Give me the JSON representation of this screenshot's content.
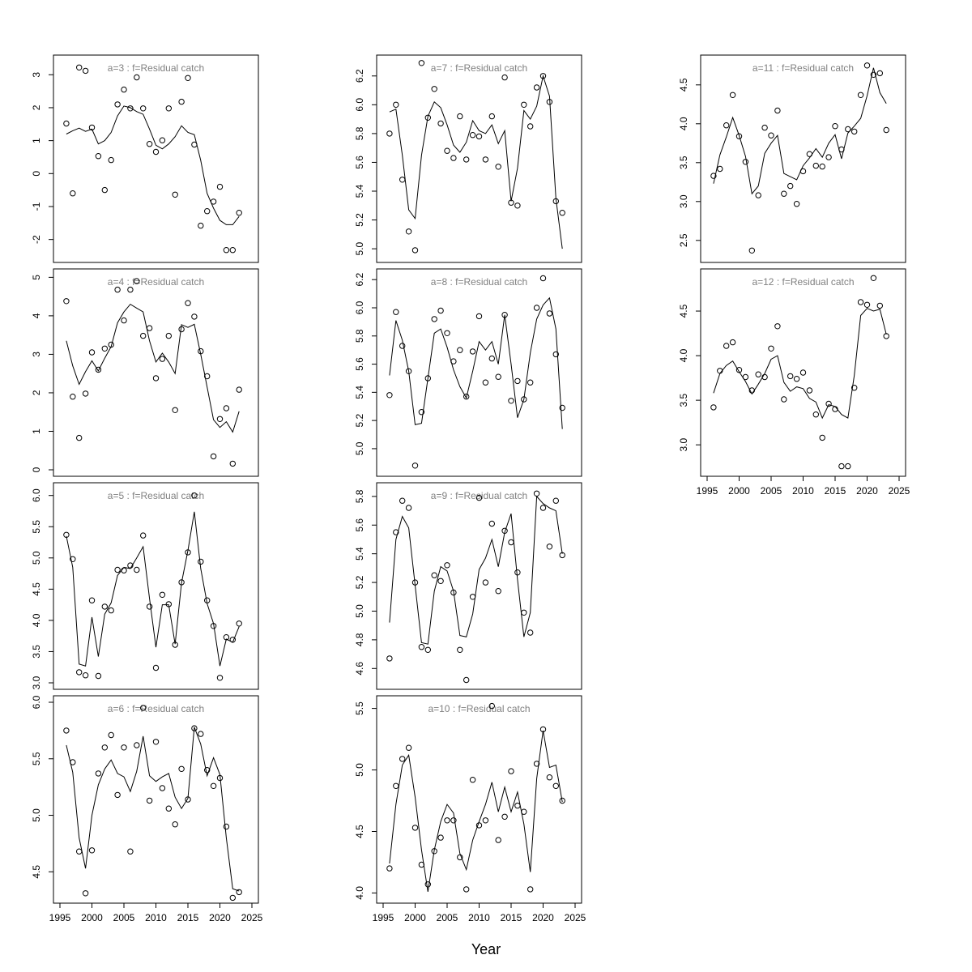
{
  "xlabel": "Year",
  "years": [
    1996,
    1997,
    1998,
    1999,
    2000,
    2001,
    2002,
    2003,
    2004,
    2005,
    2006,
    2007,
    2008,
    2009,
    2010,
    2011,
    2012,
    2013,
    2014,
    2015,
    2016,
    2017,
    2018,
    2019,
    2020,
    2021,
    2022,
    2023
  ],
  "chart_data": [
    {
      "type": "scatter",
      "title": "a=3  :  f=Residual catch",
      "xlim": [
        1995,
        2025
      ],
      "ylim": [
        -2.5,
        3.4
      ],
      "yticks": [
        -2,
        -1,
        0,
        1,
        2,
        3
      ],
      "xticks": [],
      "observed": [
        1.52,
        -0.6,
        3.22,
        3.12,
        1.4,
        0.53,
        -0.5,
        0.41,
        2.1,
        2.55,
        1.98,
        2.92,
        1.98,
        0.9,
        0.66,
        1.01,
        1.98,
        -0.64,
        2.18,
        2.9,
        0.88,
        -1.58,
        -1.14,
        -0.85,
        -0.4,
        -2.32,
        -2.32,
        -1.19
      ],
      "fitted": [
        1.2,
        1.3,
        1.38,
        1.28,
        1.35,
        0.9,
        1.0,
        1.25,
        1.75,
        2.05,
        2.0,
        1.88,
        1.8,
        1.35,
        0.86,
        0.75,
        0.9,
        1.12,
        1.45,
        1.25,
        1.18,
        0.4,
        -0.6,
        -1.05,
        -1.42,
        -1.55,
        -1.55,
        -1.3
      ]
    },
    {
      "type": "scatter",
      "title": "a=4  :  f=Residual catch",
      "xlim": [
        1995,
        2025
      ],
      "ylim": [
        0,
        5.05
      ],
      "yticks": [
        0,
        1,
        2,
        3,
        4,
        5
      ],
      "xticks": [],
      "observed": [
        4.38,
        1.9,
        0.83,
        1.98,
        3.05,
        2.6,
        3.15,
        3.25,
        4.68,
        3.88,
        4.68,
        4.9,
        3.48,
        3.68,
        2.38,
        2.88,
        3.48,
        1.55,
        3.65,
        4.33,
        3.98,
        3.08,
        2.43,
        0.35,
        1.32,
        1.6,
        0.16,
        2.08
      ],
      "fitted": [
        3.35,
        2.7,
        2.22,
        2.55,
        2.83,
        2.57,
        2.9,
        3.2,
        3.82,
        4.1,
        4.3,
        4.2,
        4.1,
        3.35,
        2.8,
        3.03,
        2.8,
        2.5,
        3.77,
        3.7,
        3.78,
        3.0,
        2.15,
        1.3,
        1.1,
        1.25,
        0.98,
        1.52
      ]
    },
    {
      "type": "scatter",
      "title": "a=5  :  f=Residual catch",
      "xlim": [
        1995,
        2025
      ],
      "ylim": [
        3.0,
        6.1
      ],
      "yticks": [
        3.0,
        3.5,
        4.0,
        4.5,
        5.0,
        5.5,
        6.0
      ],
      "xticks": [],
      "observed": [
        5.37,
        4.98,
        3.17,
        3.12,
        4.32,
        3.11,
        4.22,
        4.16,
        4.81,
        4.8,
        4.88,
        4.81,
        5.36,
        4.22,
        3.24,
        4.41,
        4.26,
        3.61,
        4.61,
        5.09,
        6.0,
        4.94,
        4.32,
        3.91,
        3.08,
        3.73,
        3.69,
        3.95
      ],
      "fitted": [
        5.35,
        4.85,
        3.3,
        3.27,
        4.05,
        3.42,
        4.1,
        4.28,
        4.72,
        4.85,
        4.83,
        5.0,
        5.18,
        4.35,
        3.57,
        4.25,
        4.25,
        3.62,
        4.6,
        5.12,
        5.74,
        4.83,
        4.27,
        3.95,
        3.27,
        3.7,
        3.65,
        3.9
      ]
    },
    {
      "type": "scatter",
      "title": "a=6  :  f=Residual catch",
      "xlim": [
        1995,
        2025
      ],
      "ylim": [
        4.28,
        6.0
      ],
      "yticks": [
        4.5,
        5.0,
        5.5,
        6.0
      ],
      "xticks": [
        1995,
        2000,
        2005,
        2010,
        2015,
        2020,
        2025
      ],
      "observed": [
        5.75,
        5.47,
        4.68,
        4.31,
        4.69,
        5.37,
        5.6,
        5.71,
        5.18,
        5.6,
        4.68,
        5.62,
        5.95,
        5.13,
        5.65,
        5.24,
        5.06,
        4.92,
        5.41,
        5.14,
        5.77,
        5.72,
        5.4,
        5.26,
        5.33,
        4.9,
        4.27,
        4.32
      ],
      "fitted": [
        5.62,
        5.38,
        4.8,
        4.53,
        5.0,
        5.27,
        5.41,
        5.49,
        5.37,
        5.34,
        5.21,
        5.39,
        5.7,
        5.35,
        5.3,
        5.34,
        5.37,
        5.16,
        5.06,
        5.15,
        5.78,
        5.63,
        5.35,
        5.51,
        5.36,
        4.8,
        4.35,
        4.33
      ]
    },
    {
      "type": "scatter",
      "title": "a=7  :  f=Residual catch",
      "xlim": [
        1995,
        2025
      ],
      "ylim": [
        4.95,
        6.3
      ],
      "yticks": [
        5.0,
        5.2,
        5.4,
        5.6,
        5.8,
        6.0,
        6.2
      ],
      "xticks": [],
      "observed": [
        5.8,
        6.0,
        5.48,
        5.12,
        4.99,
        6.29,
        5.91,
        6.11,
        5.87,
        5.68,
        5.63,
        5.92,
        5.62,
        5.79,
        5.78,
        5.62,
        5.92,
        5.57,
        6.19,
        5.32,
        5.3,
        6.0,
        5.85,
        6.12,
        6.2,
        6.02,
        5.33,
        5.25
      ],
      "fitted": [
        5.95,
        5.97,
        5.65,
        5.27,
        5.21,
        5.65,
        5.92,
        6.02,
        5.98,
        5.86,
        5.72,
        5.67,
        5.74,
        5.89,
        5.82,
        5.8,
        5.86,
        5.73,
        5.82,
        5.33,
        5.56,
        5.96,
        5.9,
        5.99,
        6.2,
        6.06,
        5.35,
        5.0
      ]
    },
    {
      "type": "scatter",
      "title": "a=8  :  f=Residual catch",
      "xlim": [
        1995,
        2025
      ],
      "ylim": [
        4.85,
        6.23
      ],
      "yticks": [
        5.0,
        5.2,
        5.4,
        5.6,
        5.8,
        6.0,
        6.2
      ],
      "xticks": [],
      "observed": [
        5.38,
        5.97,
        5.73,
        5.55,
        4.88,
        5.26,
        5.5,
        5.92,
        5.98,
        5.82,
        5.62,
        5.7,
        5.37,
        5.69,
        5.94,
        5.47,
        5.64,
        5.51,
        5.95,
        5.34,
        5.48,
        5.35,
        5.47,
        6.0,
        6.21,
        5.96,
        5.67,
        5.29
      ],
      "fitted": [
        5.52,
        5.91,
        5.77,
        5.55,
        5.17,
        5.18,
        5.5,
        5.82,
        5.85,
        5.72,
        5.56,
        5.44,
        5.36,
        5.55,
        5.76,
        5.7,
        5.76,
        5.6,
        5.95,
        5.6,
        5.22,
        5.35,
        5.68,
        5.92,
        6.02,
        6.07,
        5.85,
        5.14
      ]
    },
    {
      "type": "scatter",
      "title": "a=9  :  f=Residual catch",
      "xlim": [
        1995,
        2025
      ],
      "ylim": [
        4.5,
        5.85
      ],
      "yticks": [
        4.6,
        4.8,
        5.0,
        5.2,
        5.4,
        5.6,
        5.8
      ],
      "xticks": [],
      "observed": [
        4.67,
        5.55,
        5.77,
        5.72,
        5.2,
        4.75,
        4.73,
        5.25,
        5.21,
        5.32,
        5.13,
        4.73,
        4.52,
        5.1,
        5.79,
        5.2,
        5.61,
        5.14,
        5.56,
        5.48,
        5.27,
        4.99,
        4.85,
        5.82,
        5.72,
        5.45,
        5.77,
        5.39
      ],
      "fitted": [
        4.92,
        5.5,
        5.66,
        5.58,
        5.18,
        4.78,
        4.77,
        5.14,
        5.31,
        5.28,
        5.14,
        4.83,
        4.82,
        4.98,
        5.29,
        5.37,
        5.5,
        5.31,
        5.55,
        5.68,
        5.22,
        4.82,
        4.99,
        5.8,
        5.75,
        5.72,
        5.7,
        5.4
      ]
    },
    {
      "type": "scatter",
      "title": "a=10  :  f=Residual catch",
      "xlim": [
        1995,
        2025
      ],
      "ylim": [
        3.97,
        5.55
      ],
      "yticks": [
        4.0,
        4.5,
        5.0,
        5.5
      ],
      "xticks": [
        1995,
        2000,
        2005,
        2010,
        2015,
        2020,
        2025
      ],
      "observed": [
        4.2,
        4.87,
        5.09,
        5.18,
        4.53,
        4.23,
        4.07,
        4.34,
        4.45,
        4.59,
        4.59,
        4.29,
        4.03,
        4.92,
        4.55,
        4.59,
        5.52,
        4.43,
        4.62,
        4.99,
        4.71,
        4.66,
        4.03,
        5.05,
        5.33,
        4.94,
        4.87,
        4.75
      ],
      "fitted": [
        4.24,
        4.72,
        5.04,
        5.12,
        4.78,
        4.35,
        4.01,
        4.35,
        4.58,
        4.72,
        4.65,
        4.32,
        4.19,
        4.43,
        4.58,
        4.72,
        4.9,
        4.66,
        4.86,
        4.66,
        4.82,
        4.56,
        4.17,
        4.93,
        5.32,
        5.02,
        5.04,
        4.74
      ]
    },
    {
      "type": "scatter",
      "title": "a=11  :  f=Residual catch",
      "xlim": [
        1995,
        2025
      ],
      "ylim": [
        2.3,
        4.8
      ],
      "yticks": [
        2.5,
        3.0,
        3.5,
        4.0,
        4.5
      ],
      "xticks": [],
      "observed": [
        3.33,
        3.42,
        3.98,
        4.37,
        3.84,
        3.51,
        2.37,
        3.08,
        3.95,
        3.85,
        4.17,
        3.1,
        3.2,
        2.97,
        3.39,
        3.61,
        3.46,
        3.45,
        3.57,
        3.97,
        3.67,
        3.93,
        3.9,
        4.37,
        4.75,
        4.63,
        4.65,
        3.92
      ],
      "fitted": [
        3.23,
        3.6,
        3.83,
        4.08,
        3.85,
        3.58,
        3.1,
        3.2,
        3.62,
        3.75,
        3.85,
        3.36,
        3.32,
        3.28,
        3.46,
        3.56,
        3.68,
        3.57,
        3.75,
        3.86,
        3.55,
        3.88,
        3.97,
        4.07,
        4.36,
        4.72,
        4.4,
        4.26
      ]
    },
    {
      "type": "scatter",
      "title": "a=12  :  f=Residual catch",
      "xlim": [
        1995,
        2025
      ],
      "ylim": [
        2.72,
        4.9
      ],
      "yticks": [
        3.0,
        3.5,
        4.0,
        4.5
      ],
      "xticks": [
        1995,
        2000,
        2005,
        2010,
        2015,
        2020,
        2025
      ],
      "observed": [
        3.42,
        3.83,
        4.11,
        4.15,
        3.84,
        3.76,
        3.61,
        3.79,
        3.76,
        4.08,
        4.33,
        3.51,
        3.77,
        3.74,
        3.81,
        3.61,
        3.34,
        3.08,
        3.46,
        3.4,
        2.76,
        2.76,
        3.64,
        4.6,
        4.57,
        4.87,
        4.56,
        4.22
      ],
      "fitted": [
        3.58,
        3.8,
        3.89,
        3.94,
        3.82,
        3.71,
        3.57,
        3.68,
        3.8,
        3.96,
        4.0,
        3.7,
        3.6,
        3.65,
        3.63,
        3.52,
        3.48,
        3.3,
        3.45,
        3.43,
        3.34,
        3.3,
        3.78,
        4.45,
        4.53,
        4.5,
        4.52,
        4.24
      ]
    }
  ]
}
